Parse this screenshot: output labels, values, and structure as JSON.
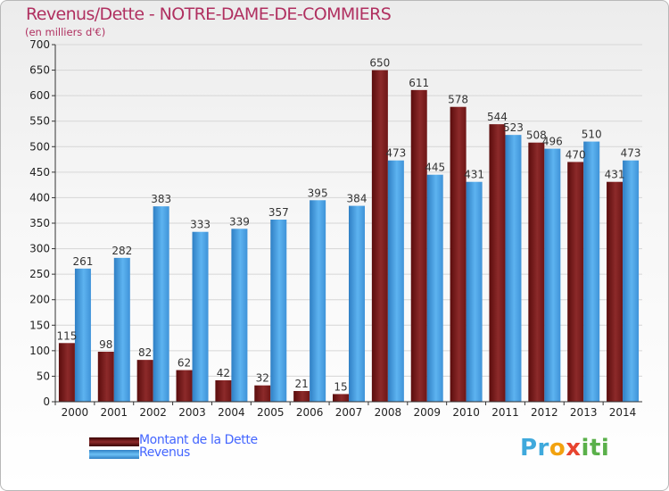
{
  "header": {
    "title": "Revenus/Dette - NOTRE-DAME-DE-COMMIERS",
    "subtitle": "(en milliers d'€)"
  },
  "legend": [
    {
      "label": "Montant de la Dette",
      "color": "#7a1a1a"
    },
    {
      "label": "Revenus",
      "color": "#4aa3e6"
    }
  ],
  "logo": {
    "parts": [
      "Pr",
      "o",
      "x",
      "iti"
    ]
  },
  "chart_data": {
    "type": "bar",
    "title": "Revenus/Dette - NOTRE-DAME-DE-COMMIERS",
    "subtitle": "(en milliers d'€)",
    "xlabel": "",
    "ylabel": "",
    "ylim": [
      0,
      700
    ],
    "yticks": [
      0,
      50,
      100,
      150,
      200,
      250,
      300,
      350,
      400,
      450,
      500,
      550,
      600,
      650,
      700
    ],
    "grid": true,
    "legend_position": "bottom-left",
    "categories": [
      "2000",
      "2001",
      "2002",
      "2003",
      "2004",
      "2005",
      "2006",
      "2007",
      "2008",
      "2009",
      "2010",
      "2011",
      "2012",
      "2013",
      "2014"
    ],
    "series": [
      {
        "name": "Montant de la Dette",
        "color": "#7a1a1a",
        "values": [
          115,
          98,
          82,
          62,
          42,
          32,
          21,
          15,
          650,
          611,
          578,
          544,
          508,
          470,
          431
        ]
      },
      {
        "name": "Revenus",
        "color": "#4aa3e6",
        "values": [
          261,
          282,
          383,
          333,
          339,
          357,
          395,
          384,
          473,
          445,
          431,
          523,
          496,
          510,
          473
        ]
      }
    ]
  }
}
